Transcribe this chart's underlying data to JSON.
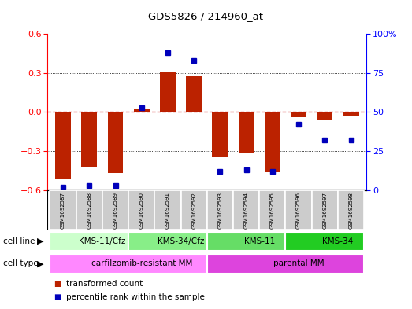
{
  "title": "GDS5826 / 214960_at",
  "samples": [
    "GSM1692587",
    "GSM1692588",
    "GSM1692589",
    "GSM1692590",
    "GSM1692591",
    "GSM1692592",
    "GSM1692593",
    "GSM1692594",
    "GSM1692595",
    "GSM1692596",
    "GSM1692597",
    "GSM1692598"
  ],
  "transformed_count": [
    -0.52,
    -0.42,
    -0.47,
    0.03,
    0.305,
    0.275,
    -0.35,
    -0.31,
    -0.46,
    -0.04,
    -0.06,
    -0.03
  ],
  "percentile_rank": [
    2,
    3,
    3,
    53,
    88,
    83,
    12,
    13,
    12,
    42,
    32,
    32
  ],
  "ylim_left": [
    -0.6,
    0.6
  ],
  "ylim_right": [
    0,
    100
  ],
  "yticks_left": [
    -0.6,
    -0.3,
    0.0,
    0.3,
    0.6
  ],
  "yticks_right": [
    0,
    25,
    50,
    75,
    100
  ],
  "cell_line_groups": [
    {
      "label": "KMS-11/Cfz",
      "start": 0,
      "end": 3,
      "color": "#ccffcc"
    },
    {
      "label": "KMS-34/Cfz",
      "start": 3,
      "end": 6,
      "color": "#88ee88"
    },
    {
      "label": "KMS-11",
      "start": 6,
      "end": 9,
      "color": "#66dd66"
    },
    {
      "label": "KMS-34",
      "start": 9,
      "end": 12,
      "color": "#22cc22"
    }
  ],
  "cell_type_groups": [
    {
      "label": "carfilzomib-resistant MM",
      "start": 0,
      "end": 6,
      "color": "#ff88ff"
    },
    {
      "label": "parental MM",
      "start": 6,
      "end": 12,
      "color": "#dd44dd"
    }
  ],
  "bar_color": "#bb2200",
  "dot_color": "#0000bb",
  "zero_line_color": "#cc0000",
  "grid_color": "#000000",
  "bg_color": "#ffffff",
  "sample_bg_color": "#cccccc",
  "sample_edge_color": "#999999",
  "legend_items": [
    {
      "color": "#bb2200",
      "label": "transformed count"
    },
    {
      "color": "#0000bb",
      "label": "percentile rank within the sample"
    }
  ]
}
